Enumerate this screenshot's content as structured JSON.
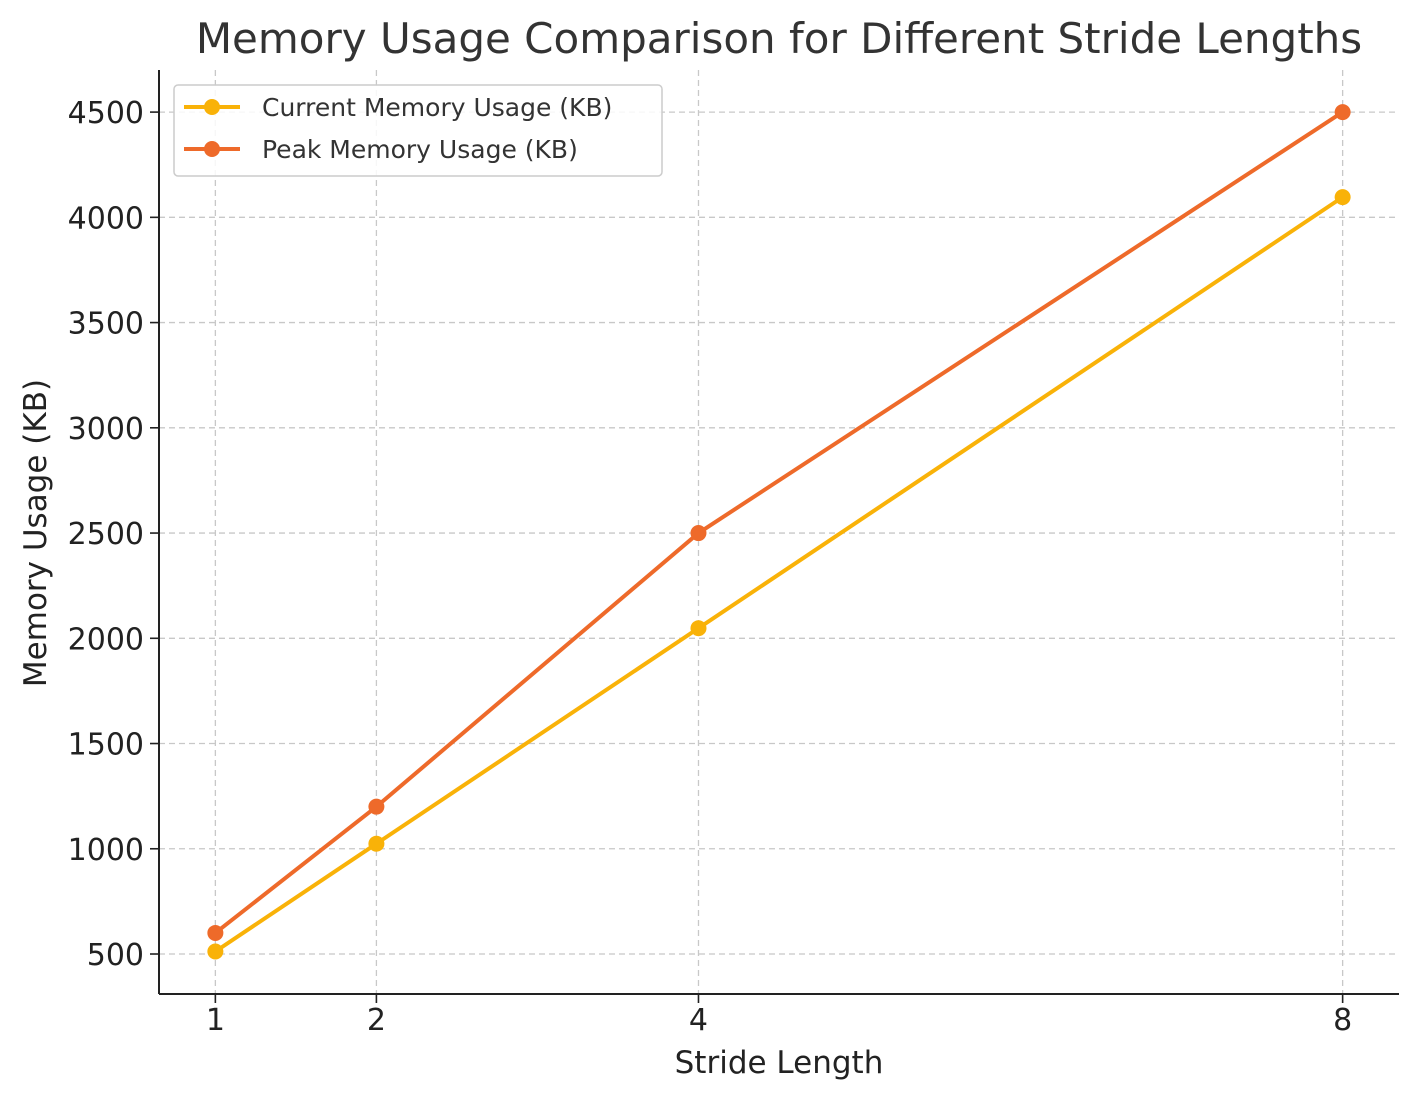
{
  "chart_data": {
    "type": "line",
    "title": "Memory Usage Comparison for Different Stride Lengths",
    "xlabel": "Stride Length",
    "ylabel": "Memory Usage (KB)",
    "x": [
      1,
      2,
      4,
      8
    ],
    "xticks": [
      "1",
      "2",
      "4",
      "8"
    ],
    "xlim": [
      0.65,
      8.35
    ],
    "yticks": [
      "500",
      "1000",
      "1500",
      "2000",
      "2500",
      "3000",
      "3500",
      "4000",
      "4500"
    ],
    "ytick_values": [
      500,
      1000,
      1500,
      2000,
      2500,
      3000,
      3500,
      4000,
      4500
    ],
    "ylim": [
      310,
      4700
    ],
    "grid": true,
    "legend_position": "top-left",
    "series": [
      {
        "name": "Current Memory Usage (KB)",
        "color": "#f9b208",
        "marker": "circle",
        "values": [
          512,
          1024,
          2048,
          4096
        ]
      },
      {
        "name": "Peak Memory Usage (KB)",
        "color": "#ee6a2a",
        "marker": "circle",
        "values": [
          600,
          1200,
          2500,
          4500
        ]
      }
    ]
  }
}
